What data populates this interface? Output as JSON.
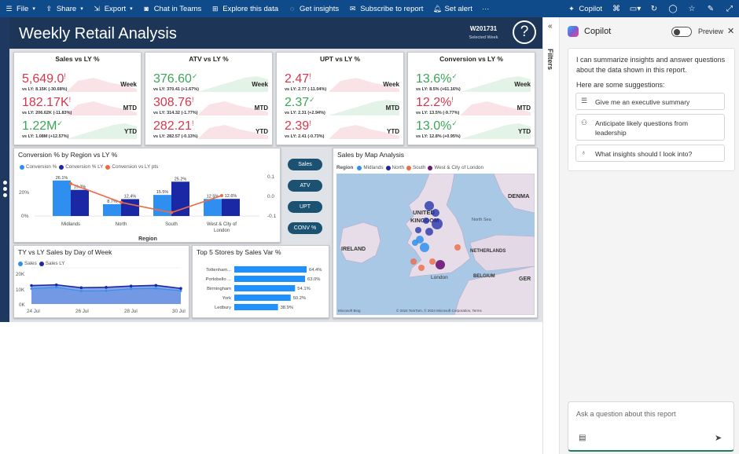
{
  "toolbar": {
    "items": [
      {
        "label": "File",
        "icon": "menu-icon",
        "chevron": true
      },
      {
        "label": "Share",
        "icon": "share-icon",
        "chevron": true
      },
      {
        "label": "Export",
        "icon": "export-icon",
        "chevron": true
      },
      {
        "label": "Chat in Teams",
        "icon": "teams-icon",
        "chevron": false
      },
      {
        "label": "Explore this data",
        "icon": "explore-icon",
        "chevron": false
      },
      {
        "label": "Get insights",
        "icon": "insights-icon",
        "chevron": false
      },
      {
        "label": "Subscribe to report",
        "icon": "subscribe-icon",
        "chevron": false
      },
      {
        "label": "Set alert",
        "icon": "bell-icon",
        "chevron": false
      }
    ],
    "more": "···",
    "copilot_label": "Copilot"
  },
  "report": {
    "title": "Weekly Retail Analysis",
    "week_code": "W201731",
    "week_sub": "Selected Week",
    "help": "?"
  },
  "kpis": [
    {
      "title": "Sales vs LY %",
      "rows": [
        {
          "value": "5,649.0",
          "trend": "down",
          "sub": "vs LY: 8.15K (-30.68%)",
          "period": "Week"
        },
        {
          "value": "182.17K",
          "trend": "down",
          "sub": "vs LY: 206.62K (-11.83%)",
          "period": "MTD"
        },
        {
          "value": "1.22M",
          "trend": "up",
          "sub": "vs LY: 1.08M (+12.57%)",
          "period": "YTD"
        }
      ]
    },
    {
      "title": "ATV vs LY %",
      "rows": [
        {
          "value": "376.60",
          "trend": "up",
          "sub": "vs LY: 370.41 (+1.67%)",
          "period": "Week"
        },
        {
          "value": "308.76",
          "trend": "down",
          "sub": "vs LY: 314.32 (-1.77%)",
          "period": "MTD"
        },
        {
          "value": "282.21",
          "trend": "down",
          "sub": "vs LY: 282.57 (-0.13%)",
          "period": "YTD"
        }
      ]
    },
    {
      "title": "UPT vs LY %",
      "rows": [
        {
          "value": "2.47",
          "trend": "down",
          "sub": "vs LY: 2.77 (-11.04%)",
          "period": "Week"
        },
        {
          "value": "2.37",
          "trend": "up",
          "sub": "vs LY: 2.31 (+2.94%)",
          "period": "MTD"
        },
        {
          "value": "2.39",
          "trend": "down",
          "sub": "vs LY: 2.41 (-0.73%)",
          "period": "YTD"
        }
      ]
    },
    {
      "title": "Conversion vs LY %",
      "rows": [
        {
          "value": "13.6%",
          "trend": "up",
          "sub": "vs LY: 8.5% (+61.16%)",
          "period": "Week"
        },
        {
          "value": "12.2%",
          "trend": "down",
          "sub": "vs LY: 13.5% (-9.77%)",
          "period": "MTD"
        },
        {
          "value": "13.0%",
          "trend": "up",
          "sub": "vs LY: 12.8% (+0.95%)",
          "period": "YTD"
        }
      ]
    }
  ],
  "conversion_chart": {
    "title": "Conversion % by Region vs LY %",
    "legend": [
      "Conversion %",
      "Conversion % LY",
      "Conversion vs LY pts"
    ],
    "xlabel": "Region",
    "y_ticks": [
      "20%",
      "0%"
    ],
    "y2_ticks": [
      "0.1",
      "0.0",
      "-0.1"
    ]
  },
  "buttons": [
    "Sales",
    "ATV",
    "UPT",
    "CONV %"
  ],
  "map": {
    "title": "Sales by Map Analysis",
    "legend_label": "Region",
    "legend": [
      "Midlands",
      "North",
      "South",
      "West & City of London"
    ],
    "labels": [
      "DENMA",
      "UNITED",
      "KINGDOM",
      "North Sea",
      "IRELAND",
      "NETHERLANDS",
      "London",
      "BELGIUM",
      "GER"
    ],
    "attribution": "© 2024 TomTom, © 2024 Microsoft Corporation, Terms",
    "brand": "Microsoft Bing"
  },
  "day_chart": {
    "title": "TY vs LY Sales by Day of Week",
    "legend": [
      "Sales",
      "Sales LY"
    ],
    "y_ticks": [
      "20K",
      "10K",
      "0K"
    ],
    "x_ticks": [
      "24 Jul",
      "26 Jul",
      "28 Jul",
      "30 Jul"
    ]
  },
  "stores_chart": {
    "title": "Top 5 Stores by Sales Var %"
  },
  "filters_label": "Filters",
  "copilot": {
    "title": "Copilot",
    "preview": "Preview",
    "intro": "I can summarize insights and answer questions about the data shown in this report.",
    "suggest_heading": "Here are some suggestions:",
    "suggestions": [
      "Give me an executive summary",
      "Anticipate likely questions from leadership",
      "What insights should I look into?"
    ],
    "input_placeholder": "Ask a question about this report"
  },
  "colors": {
    "toolbar": "#0f4a8a",
    "header": "#1d3557",
    "midlands": "#2f8ff0",
    "north": "#1b28a6",
    "south": "#ef6a46",
    "west": "#6d1477",
    "bar": "#1e90ff",
    "red": "#d9364b",
    "green": "#3aa755"
  },
  "chart_data": [
    {
      "id": "conversion",
      "type": "bar",
      "title": "Conversion % by Region vs LY %",
      "categories": [
        "Midlands",
        "North",
        "South",
        "West & City of London"
      ],
      "series": [
        {
          "name": "Conversion %",
          "values": [
            26.1,
            8.7,
            15.5,
            12.5
          ]
        },
        {
          "name": "Conversion % LY",
          "values": [
            19.2,
            12.4,
            25.2,
            12.6
          ]
        },
        {
          "name": "Conversion vs LY pts",
          "values": [
            0.07,
            -0.04,
            -0.1,
            0.0
          ]
        }
      ],
      "xlabel": "Region",
      "ylim": [
        0,
        30
      ],
      "y2lim": [
        -0.12,
        0.12
      ]
    },
    {
      "id": "day",
      "type": "area",
      "title": "TY vs LY Sales by Day of Week",
      "x": [
        "24 Jul",
        "25 Jul",
        "26 Jul",
        "27 Jul",
        "28 Jul",
        "29 Jul",
        "30 Jul"
      ],
      "series": [
        {
          "name": "Sales",
          "values": [
            8500,
            9200,
            7200,
            7300,
            8400,
            8600,
            7300
          ]
        },
        {
          "name": "Sales LY",
          "values": [
            10200,
            10600,
            9000,
            9200,
            9900,
            10300,
            8600
          ]
        }
      ],
      "ylim": [
        0,
        20000
      ]
    },
    {
      "id": "stores",
      "type": "bar",
      "title": "Top 5 Stores by Sales Var %",
      "categories": [
        "Tottenham...",
        "Portobello ...",
        "Birmingham",
        "York",
        "Ledbury"
      ],
      "values": [
        64.4,
        63.0,
        54.1,
        50.2,
        38.9
      ],
      "labels": [
        "64.4%",
        "63.0%",
        "54.1%",
        "50.2%",
        "38.9%"
      ],
      "xlim": [
        0,
        70
      ]
    }
  ]
}
